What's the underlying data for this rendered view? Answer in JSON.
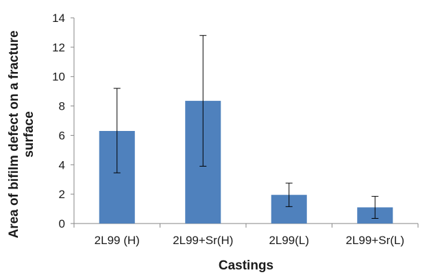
{
  "chart_data": {
    "type": "bar",
    "title": "",
    "xlabel": "Castings",
    "ylabel_lines": [
      "Area of bifilm defect on a fracture",
      "surface"
    ],
    "categories": [
      "2L99 (H)",
      "2L99+Sr(H)",
      "2L99(L)",
      "2L99+Sr(L)"
    ],
    "series": [
      {
        "values": [
          6.3,
          8.35,
          1.95,
          1.1
        ],
        "error_low": [
          3.45,
          3.9,
          1.15,
          0.35
        ],
        "error_high": [
          9.2,
          12.8,
          2.75,
          1.85
        ],
        "color": "#4f81bd"
      }
    ],
    "ylim": [
      0,
      14
    ],
    "yticks": [
      "0",
      "2",
      "4",
      "6",
      "8",
      "10",
      "12",
      "14"
    ],
    "ytick_values": [
      0,
      2,
      4,
      6,
      8,
      10,
      12,
      14
    ],
    "grid": false,
    "legend": "none"
  }
}
